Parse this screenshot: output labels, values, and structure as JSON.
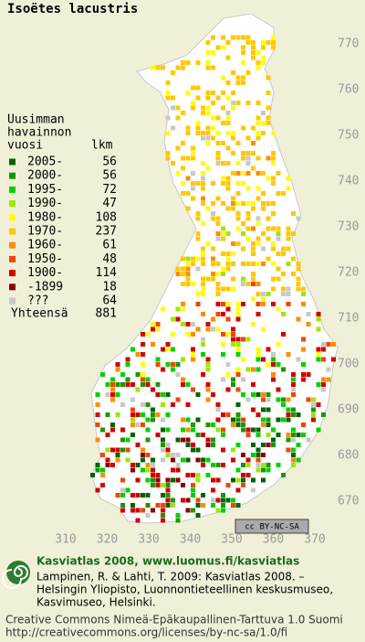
{
  "title": "Isoëtes lacustris",
  "legend": {
    "heading": [
      "Uusimman",
      "havainnon",
      "vuosi"
    ],
    "count_heading": "lkm",
    "rows": [
      {
        "label": "2005-",
        "count": 56,
        "color": "#006400"
      },
      {
        "label": "2000-",
        "count": 56,
        "color": "#1e9600"
      },
      {
        "label": "1995-",
        "count": 72,
        "color": "#00d200"
      },
      {
        "label": "1990-",
        "count": 47,
        "color": "#a0e600"
      },
      {
        "label": "1980-",
        "count": 108,
        "color": "#ffff00"
      },
      {
        "label": "1970-",
        "count": 237,
        "color": "#ffc800"
      },
      {
        "label": "1960-",
        "count": 61,
        "color": "#ff8c00"
      },
      {
        "label": "1950-",
        "count": 48,
        "color": "#f04600"
      },
      {
        "label": "1900-",
        "count": 114,
        "color": "#d20000"
      },
      {
        "label": "-1899",
        "count": 18,
        "color": "#8c0000"
      },
      {
        "label": "???",
        "count": 64,
        "color": "#c8c8c8"
      }
    ],
    "total_label": "Yhteensä",
    "total": 881
  },
  "grid": {
    "northing": [
      770,
      760,
      750,
      740,
      730,
      720,
      710,
      700,
      690,
      680,
      670
    ],
    "easting": [
      310,
      320,
      330,
      340,
      350,
      360,
      370
    ]
  },
  "license_badge": "cc BY-NC-SA",
  "footer": {
    "brand": "Kasviatlas 2008, www.luomus.fi/kasviatlas",
    "citation": [
      "Lampinen, R. & Lahti, T. 2009: Kasviatlas 2008. –",
      "Helsingin Yliopisto, Luonnontieteellinen keskusmuseo,",
      "Kasvimuseo, Helsinki."
    ],
    "license": [
      "Creative Commons Nimeä-Epäkaupallinen-Tarttuva 1.0 Suomi",
      "http://creativecommons.org/licenses/by-nc-sa/1.0/fi"
    ]
  }
}
